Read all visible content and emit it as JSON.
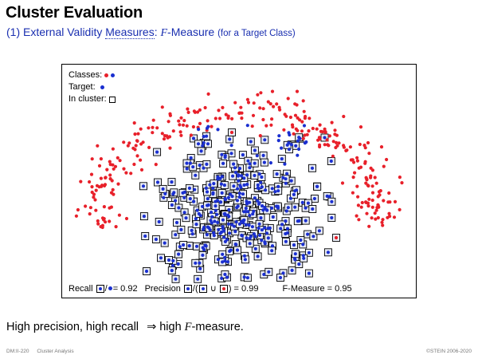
{
  "slide": {
    "title": "Cluster Evaluation",
    "subtitle": {
      "prefix": "(1) External Validity ",
      "measures_link": "Measures",
      "colon": ": ",
      "f_symbol": "F",
      "f_suffix": "-Measure",
      "qualifier": "(for a Target Class)"
    },
    "statement": {
      "prefix": "High precision, high recall",
      "arrow": "⇒",
      "middle": "high ",
      "f_symbol": "F",
      "suffix": "-measure."
    },
    "footer": {
      "left_page": "DM:II-220",
      "left_topic": "Cluster Analysis",
      "right": "©STEIN 2006-2020"
    }
  },
  "figure": {
    "legend": {
      "classes_label": "Classes:",
      "target_label": "Target:",
      "in_cluster_label": "In cluster:"
    },
    "metrics": {
      "recall_label": "Recall",
      "recall_slash": "/",
      "recall_value": "= 0.92",
      "precision_label": "Precision",
      "precision_open": "/(",
      "precision_union": "∪",
      "precision_close": ") = 0.99",
      "fmeasure_text": "F-Measure = 0.95"
    },
    "colors": {
      "class_other": "#e8202a",
      "class_target": "#1a2fd0",
      "cluster_box": "#000000"
    },
    "icons": [
      "red-dot-icon",
      "blue-dot-icon",
      "cluster-box-icon",
      "union-icon"
    ],
    "evaluation": {
      "recall": 0.92,
      "precision": 0.99,
      "f_measure": 0.95
    }
  }
}
